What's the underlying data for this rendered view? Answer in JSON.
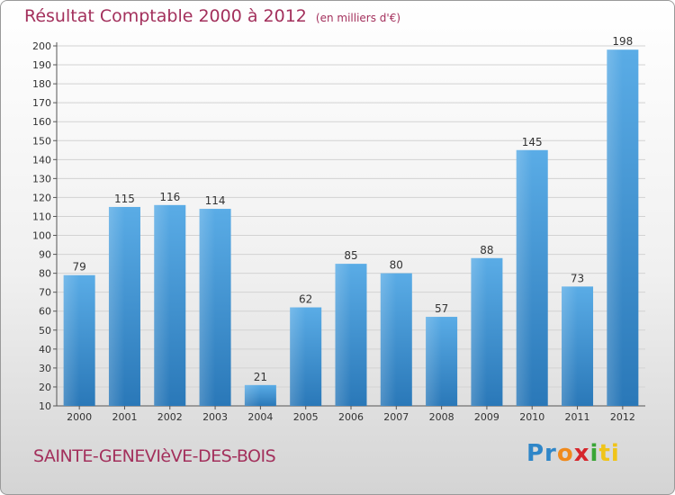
{
  "title": "Résultat Comptable 2000 à 2012",
  "unit_note": "(en milliers d'€)",
  "commune": "SAINTE-GENEVIèVE-DES-BOIS",
  "logo": {
    "p1": "Pr",
    "p2": "o",
    "p3": "x",
    "p4": "i",
    "p5": "ti"
  },
  "colors": {
    "bar": "#4a9ddc",
    "bar_light": "#62b0ea",
    "bar_dark": "#2a78b8",
    "title": "#a3305c"
  },
  "chart_data": {
    "type": "bar",
    "title": "Résultat Comptable 2000 à 2012",
    "xlabel": "",
    "ylabel": "",
    "categories": [
      "2000",
      "2001",
      "2002",
      "2003",
      "2004",
      "2005",
      "2006",
      "2007",
      "2008",
      "2009",
      "2010",
      "2011",
      "2012"
    ],
    "values": [
      79,
      115,
      116,
      114,
      21,
      62,
      85,
      80,
      57,
      88,
      145,
      73,
      198
    ],
    "ylim": [
      10,
      200
    ],
    "yticks": [
      10,
      20,
      30,
      40,
      50,
      60,
      70,
      80,
      90,
      100,
      110,
      120,
      130,
      140,
      150,
      160,
      170,
      180,
      190,
      200
    ],
    "grid": true
  }
}
